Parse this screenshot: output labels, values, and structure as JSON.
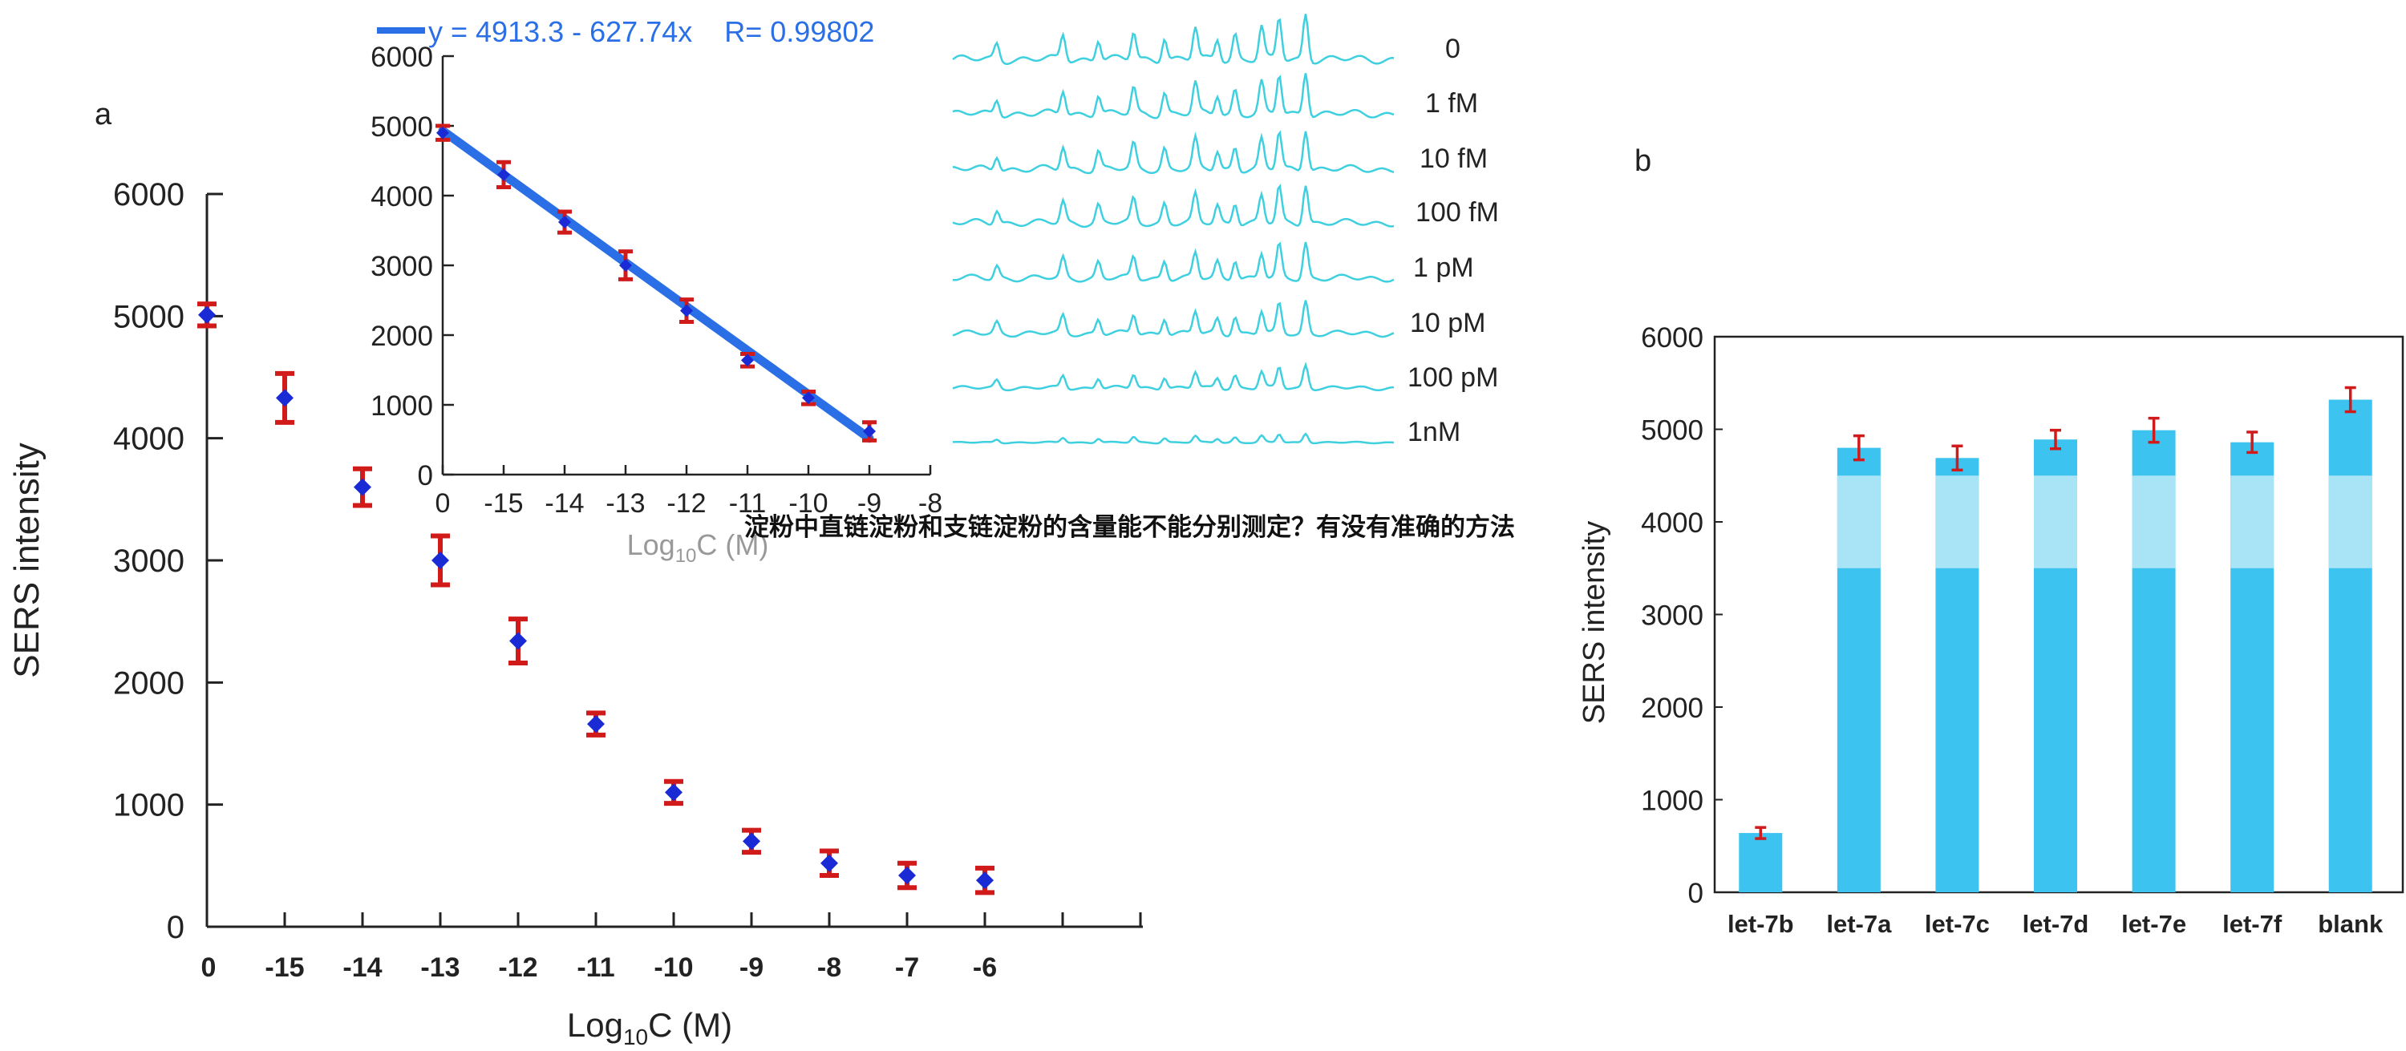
{
  "overlay_title": "淀粉中直链淀粉和支链淀粉的含量能不能分别测定？有没有准确的方法",
  "colors": {
    "error_bar": "#d11a1a",
    "point": "#1a2bd6",
    "fit_line": "#2b6fe6",
    "spectra": "#3fd0e0",
    "bar": "#3cc3f0",
    "bar_light_band": "#a9e3f6",
    "axis": "#222222",
    "equation_text": "#2b6fe6"
  },
  "chart_data": [
    {
      "panel": "a",
      "type": "scatter",
      "ylabel": "SERS intensity",
      "xlabel": "Log10C (M)",
      "ylim": [
        0,
        6000
      ],
      "yticks": [
        "0",
        "1000",
        "2000",
        "3000",
        "4000",
        "5000",
        "6000"
      ],
      "xtick_labels": [
        "0",
        "-15",
        "-14",
        "-13",
        "-12",
        "-11",
        "-10",
        "-9",
        "-8",
        "-7",
        "-6"
      ],
      "points": [
        {
          "x": "0",
          "y": 5010,
          "err": 90
        },
        {
          "x": "-15",
          "y": 4330,
          "err": 200
        },
        {
          "x": "-14",
          "y": 3600,
          "err": 150
        },
        {
          "x": "-13",
          "y": 3000,
          "err": 200
        },
        {
          "x": "-12",
          "y": 2340,
          "err": 180
        },
        {
          "x": "-11",
          "y": 1660,
          "err": 90
        },
        {
          "x": "-10",
          "y": 1100,
          "err": 90
        },
        {
          "x": "-9",
          "y": 700,
          "err": 90
        },
        {
          "x": "-8",
          "y": 520,
          "err": 100
        },
        {
          "x": "-7",
          "y": 420,
          "err": 100
        },
        {
          "x": "-6",
          "y": 380,
          "err": 100
        }
      ]
    },
    {
      "panel": "a-inset",
      "type": "scatter",
      "legend": "y = 4913.3 - 627.74x    R= 0.99802",
      "xlabel": "Log10C (M)",
      "ylim": [
        0,
        6000
      ],
      "yticks": [
        "0",
        "1000",
        "2000",
        "3000",
        "4000",
        "5000",
        "6000"
      ],
      "xtick_labels": [
        "0",
        "-15",
        "-14",
        "-13",
        "-12",
        "-11",
        "-10",
        "-9",
        "-8"
      ],
      "points": [
        {
          "x": "0",
          "y": 4900,
          "err": 100
        },
        {
          "x": "-15",
          "y": 4300,
          "err": 180
        },
        {
          "x": "-14",
          "y": 3620,
          "err": 150
        },
        {
          "x": "-13",
          "y": 3000,
          "err": 200
        },
        {
          "x": "-12",
          "y": 2350,
          "err": 160
        },
        {
          "x": "-11",
          "y": 1640,
          "err": 90
        },
        {
          "x": "-10",
          "y": 1100,
          "err": 90
        },
        {
          "x": "-9",
          "y": 620,
          "err": 130
        }
      ]
    },
    {
      "panel": "a-spectra",
      "type": "line",
      "series_labels": [
        "0",
        "1 fM",
        "10 fM",
        "100 fM",
        "1 pM",
        "10 pM",
        "100 pM",
        "1nM"
      ],
      "peaks": [
        {
          "x": 0.1,
          "h": 0.35
        },
        {
          "x": 0.25,
          "h": 0.55
        },
        {
          "x": 0.33,
          "h": 0.45
        },
        {
          "x": 0.41,
          "h": 0.6
        },
        {
          "x": 0.48,
          "h": 0.5
        },
        {
          "x": 0.55,
          "h": 0.7
        },
        {
          "x": 0.6,
          "h": 0.45
        },
        {
          "x": 0.64,
          "h": 0.55
        },
        {
          "x": 0.7,
          "h": 0.7
        },
        {
          "x": 0.74,
          "h": 0.9
        },
        {
          "x": 0.8,
          "h": 1.0
        }
      ],
      "amplitudes": [
        1.0,
        0.95,
        0.9,
        0.85,
        0.78,
        0.7,
        0.5,
        0.2
      ]
    },
    {
      "panel": "b",
      "type": "bar",
      "ylabel": "SERS intensity",
      "ylim": [
        0,
        6000
      ],
      "yticks": [
        "0",
        "1000",
        "2000",
        "3000",
        "4000",
        "5000",
        "6000"
      ],
      "categories": [
        "let-7b",
        "let-7a",
        "let-7c",
        "let-7d",
        "let-7e",
        "let-7f",
        "blank"
      ],
      "values": [
        640,
        4800,
        4690,
        4890,
        4990,
        4860,
        5320
      ],
      "errors": [
        60,
        130,
        130,
        100,
        130,
        110,
        130
      ]
    }
  ],
  "labels": {
    "panel_a": "a",
    "panel_b": "b"
  }
}
